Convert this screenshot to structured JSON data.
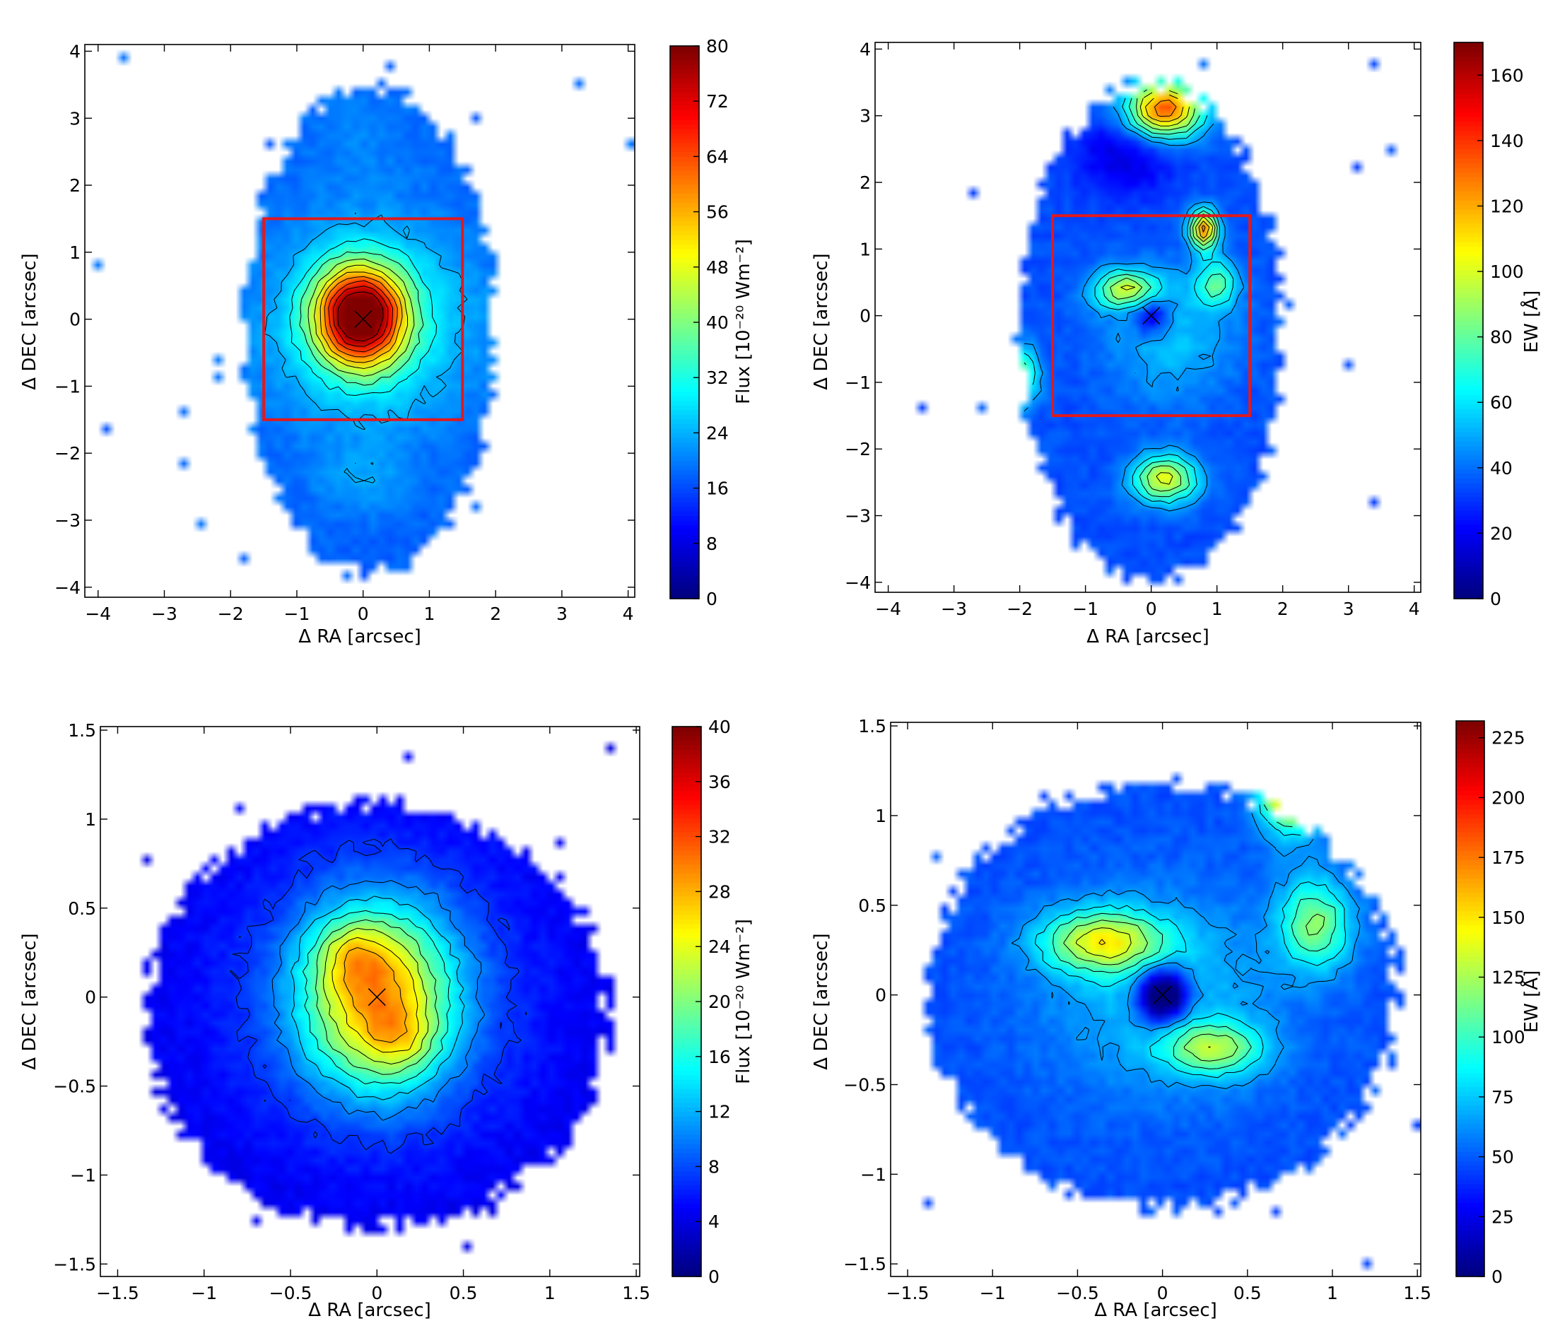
{
  "chart_data": [
    {
      "type": "heatmap",
      "panel": "top-left",
      "xlabel": "Δ RA [arcsec]",
      "ylabel": "Δ DEC [arcsec]",
      "xlim": [
        -4.2,
        4.1
      ],
      "ylim": [
        -4.15,
        4.1
      ],
      "xticks": [
        -4,
        -3,
        -2,
        -1,
        0,
        1,
        2,
        3,
        4
      ],
      "yticks": [
        -4,
        -3,
        -2,
        -1,
        0,
        1,
        2,
        3,
        4
      ],
      "colorbar": {
        "label": "Flux [10⁻²⁰ Wm⁻²]",
        "min": 0,
        "max": 80,
        "ticks": [
          0,
          8,
          16,
          24,
          32,
          40,
          48,
          56,
          64,
          72,
          80
        ],
        "colormap": "jet"
      },
      "background": 0.22,
      "region": {
        "cx": 0.1,
        "cy": -0.15,
        "rx": 1.85,
        "ry": 3.55
      },
      "blobs": [
        {
          "x": -0.05,
          "y": 0.05,
          "sx": 0.45,
          "sy": 0.5,
          "a": 0.78
        },
        {
          "x": 0.1,
          "y": -0.05,
          "sx": 1.05,
          "sy": 1.0,
          "a": 0.18
        },
        {
          "x": 0.0,
          "y": -2.4,
          "sx": 0.5,
          "sy": 0.35,
          "a": 0.06
        },
        {
          "x": 0.0,
          "y": 2.8,
          "sx": 0.55,
          "sy": 0.6,
          "a": 0.03
        }
      ],
      "box": {
        "x0": -1.5,
        "x1": 1.5,
        "y0": -1.5,
        "y1": 1.5,
        "color": "#e0191e"
      },
      "marker": {
        "x": 0.0,
        "y": 0.0
      }
    },
    {
      "type": "heatmap",
      "panel": "top-right",
      "xlabel": "Δ RA [arcsec]",
      "ylabel": "Δ DEC [arcsec]",
      "xlim": [
        -4.2,
        4.1
      ],
      "ylim": [
        -4.15,
        4.1
      ],
      "xticks": [
        -4,
        -3,
        -2,
        -1,
        0,
        1,
        2,
        3,
        4
      ],
      "yticks": [
        -4,
        -3,
        -2,
        -1,
        0,
        1,
        2,
        3,
        4
      ],
      "colorbar": {
        "label": "EW [Å]",
        "min": 0,
        "max": 170,
        "ticks": [
          0,
          20,
          40,
          60,
          80,
          100,
          120,
          140,
          160
        ],
        "colormap": "jet"
      },
      "background": 0.2,
      "region": {
        "cx": 0.0,
        "cy": -0.25,
        "rx": 1.95,
        "ry": 3.65
      },
      "blobs": [
        {
          "x": 0.2,
          "y": 3.1,
          "sx": 0.4,
          "sy": 0.3,
          "a": 0.6
        },
        {
          "x": -0.4,
          "y": 0.4,
          "sx": 0.35,
          "sy": 0.2,
          "a": 0.35
        },
        {
          "x": 0.8,
          "y": 1.3,
          "sx": 0.15,
          "sy": 0.2,
          "a": 0.55
        },
        {
          "x": 1.0,
          "y": 0.5,
          "sx": 0.22,
          "sy": 0.25,
          "a": 0.25
        },
        {
          "x": 0.2,
          "y": -2.45,
          "sx": 0.35,
          "sy": 0.25,
          "a": 0.4
        },
        {
          "x": -2.0,
          "y": -0.9,
          "sx": 0.2,
          "sy": 0.3,
          "a": 0.3
        },
        {
          "x": 0.3,
          "y": -0.3,
          "sx": 0.7,
          "sy": 0.7,
          "a": 0.12
        },
        {
          "x": 0.0,
          "y": 0.0,
          "sx": 0.2,
          "sy": 0.2,
          "a": -0.2
        },
        {
          "x": -0.4,
          "y": 2.4,
          "sx": 0.5,
          "sy": 0.4,
          "a": -0.12
        }
      ],
      "box": {
        "x0": -1.5,
        "x1": 1.5,
        "y0": -1.5,
        "y1": 1.5,
        "color": "#e0191e"
      },
      "marker": {
        "x": 0.0,
        "y": 0.0
      }
    },
    {
      "type": "heatmap",
      "panel": "bottom-left",
      "xlabel": "Δ RA [arcsec]",
      "ylabel": "Δ DEC [arcsec]",
      "xlim": [
        -1.6,
        1.52
      ],
      "ylim": [
        -1.57,
        1.52
      ],
      "xticks": [
        -1.5,
        -1.0,
        -0.5,
        0.0,
        0.5,
        1.0,
        1.5
      ],
      "yticks": [
        -1.5,
        -1.0,
        -0.5,
        0.0,
        0.5,
        1.0,
        1.5
      ],
      "colorbar": {
        "label": "Flux [10⁻²⁰ Wm⁻²]",
        "min": 0,
        "max": 40,
        "ticks": [
          0,
          4,
          8,
          12,
          16,
          20,
          24,
          28,
          32,
          36,
          40
        ],
        "colormap": "jet"
      },
      "background": 0.1,
      "region": {
        "cx": 0.0,
        "cy": -0.1,
        "rx": 1.3,
        "ry": 1.15
      },
      "blobs": [
        {
          "x": 0.0,
          "y": 0.0,
          "sx": 0.3,
          "sy": 0.35,
          "a": 0.52
        },
        {
          "x": -0.15,
          "y": 0.25,
          "sx": 0.14,
          "sy": 0.12,
          "a": 0.15
        },
        {
          "x": 0.15,
          "y": -0.25,
          "sx": 0.14,
          "sy": 0.12,
          "a": 0.12
        },
        {
          "x": 0.0,
          "y": 0.0,
          "sx": 0.65,
          "sy": 0.6,
          "a": 0.12
        },
        {
          "x": 0.75,
          "y": 1.2,
          "sx": 0.15,
          "sy": 0.2,
          "a": 0.04
        }
      ],
      "marker": {
        "x": 0.0,
        "y": 0.0
      }
    },
    {
      "type": "heatmap",
      "panel": "bottom-right",
      "xlabel": "Δ RA [arcsec]",
      "ylabel": "Δ DEC [arcsec]",
      "xlim": [
        -1.6,
        1.52
      ],
      "ylim": [
        -1.57,
        1.52
      ],
      "xticks": [
        -1.5,
        -1.0,
        -0.5,
        0.0,
        0.5,
        1.0,
        1.5
      ],
      "yticks": [
        -1.5,
        -1.0,
        -0.5,
        0.0,
        0.5,
        1.0,
        1.5
      ],
      "colorbar": {
        "label": "EW [Å]",
        "min": 0,
        "max": 232,
        "ticks": [
          0,
          25,
          50,
          75,
          100,
          125,
          150,
          175,
          200,
          225
        ],
        "colormap": "jet"
      },
      "background": 0.2,
      "region": {
        "cx": 0.0,
        "cy": 0.0,
        "rx": 1.35,
        "ry": 1.15
      },
      "blobs": [
        {
          "x": -0.35,
          "y": 0.3,
          "sx": 0.25,
          "sy": 0.12,
          "a": 0.38
        },
        {
          "x": 0.3,
          "y": -0.3,
          "sx": 0.2,
          "sy": 0.1,
          "a": 0.3
        },
        {
          "x": 0.9,
          "y": 0.4,
          "sx": 0.15,
          "sy": 0.18,
          "a": 0.3
        },
        {
          "x": 0.75,
          "y": 1.2,
          "sx": 0.12,
          "sy": 0.18,
          "a": 0.65
        },
        {
          "x": 0.0,
          "y": 0.0,
          "sx": 0.1,
          "sy": 0.1,
          "a": -0.45
        },
        {
          "x": 0.0,
          "y": 0.0,
          "sx": 0.5,
          "sy": 0.4,
          "a": 0.12
        }
      ],
      "marker": {
        "x": 0.0,
        "y": 0.0
      }
    }
  ]
}
